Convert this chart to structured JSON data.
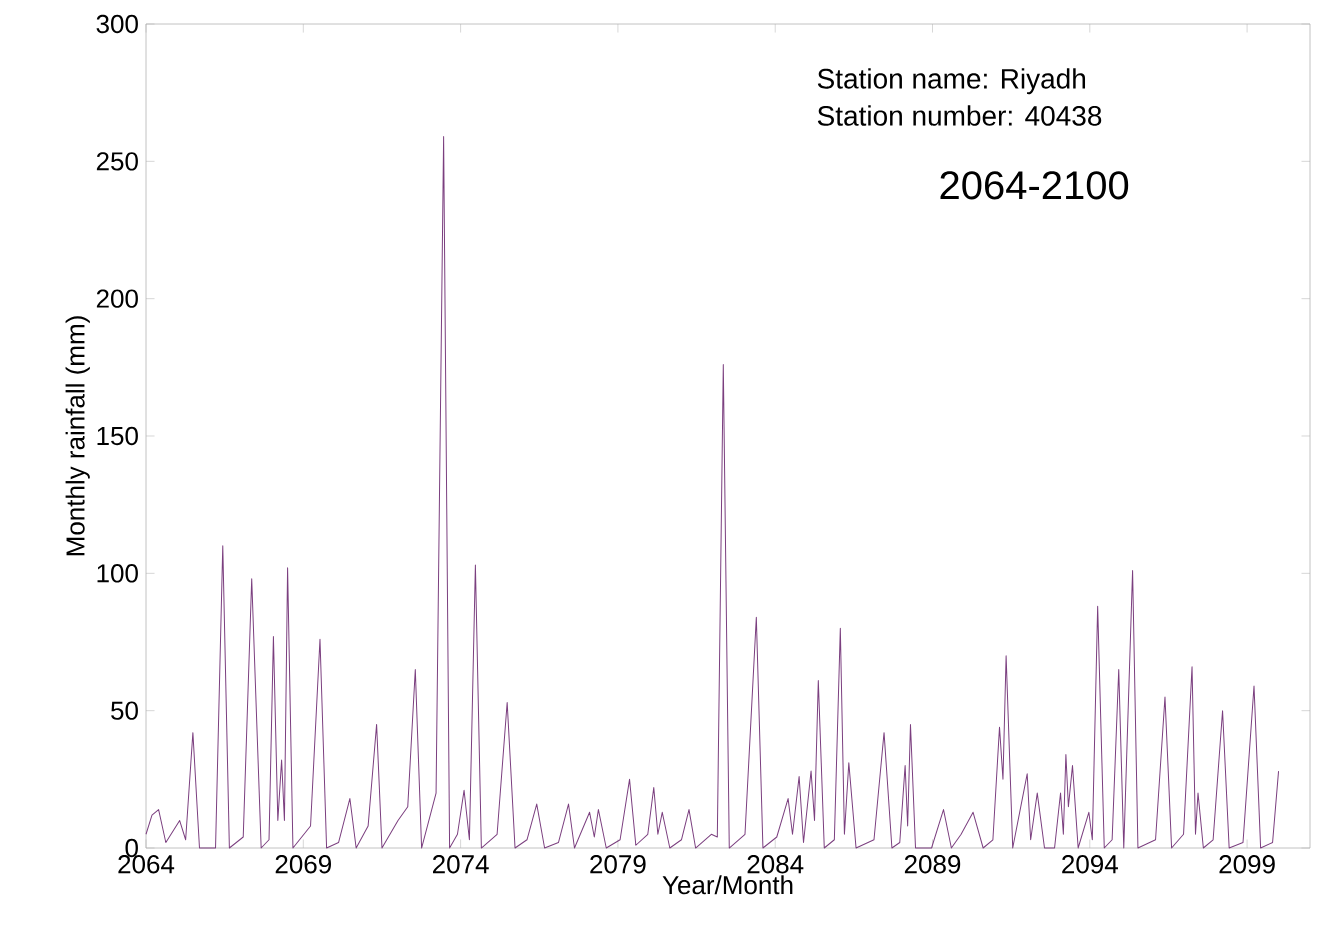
{
  "chart_data": {
    "type": "line",
    "xlabel": "Year/Month",
    "ylabel": "Monthly rainfall (mm)",
    "title": "2064-2100",
    "annotations": [
      "Station name: Riyadh",
      "Station number: 40438"
    ],
    "xlim": [
      2064,
      2101
    ],
    "xticks": [
      2064,
      2069,
      2074,
      2079,
      2084,
      2089,
      2094,
      2099
    ],
    "ylim": [
      0,
      300
    ],
    "yticks": [
      0,
      50,
      100,
      150,
      200,
      250,
      300
    ],
    "series": [
      {
        "color": "#7b3f7f",
        "x": [
          2064.0,
          2064.19,
          2064.4,
          2064.63,
          2065.07,
          2065.26,
          2065.49,
          2065.7,
          2066.21,
          2066.44,
          2066.65,
          2067.09,
          2067.36,
          2067.66,
          2067.91,
          2068.05,
          2068.19,
          2068.31,
          2068.4,
          2068.5,
          2068.67,
          2069.23,
          2069.53,
          2069.74,
          2070.12,
          2070.48,
          2070.68,
          2071.06,
          2071.33,
          2071.5,
          2072.01,
          2072.32,
          2072.56,
          2072.76,
          2073.22,
          2073.46,
          2073.65,
          2073.9,
          2074.11,
          2074.28,
          2074.47,
          2074.66,
          2075.16,
          2075.48,
          2075.73,
          2076.11,
          2076.42,
          2076.67,
          2077.11,
          2077.43,
          2077.62,
          2078.1,
          2078.25,
          2078.38,
          2078.63,
          2079.07,
          2079.37,
          2079.57,
          2079.95,
          2080.14,
          2080.27,
          2080.41,
          2080.65,
          2081.02,
          2081.26,
          2081.47,
          2081.97,
          2082.16,
          2082.35,
          2082.54,
          2083.04,
          2083.4,
          2083.61,
          2084.05,
          2084.41,
          2084.55,
          2084.76,
          2084.9,
          2085.14,
          2085.25,
          2085.37,
          2085.56,
          2085.88,
          2086.07,
          2086.2,
          2086.34,
          2086.57,
          2087.14,
          2087.46,
          2087.71,
          2087.96,
          2088.13,
          2088.21,
          2088.3,
          2088.46,
          2088.97,
          2089.35,
          2089.6,
          2089.91,
          2090.29,
          2090.61,
          2090.92,
          2091.13,
          2091.24,
          2091.34,
          2091.55,
          2092.01,
          2092.12,
          2092.33,
          2092.56,
          2092.88,
          2093.07,
          2093.16,
          2093.24,
          2093.32,
          2093.45,
          2093.63,
          2093.97,
          2094.08,
          2094.25,
          2094.46,
          2094.71,
          2094.92,
          2095.08,
          2095.36,
          2095.53,
          2096.09,
          2096.39,
          2096.6,
          2096.98,
          2097.25,
          2097.36,
          2097.44,
          2097.61,
          2097.92,
          2098.22,
          2098.43,
          2098.87,
          2099.22,
          2099.43,
          2099.81,
          2100.0
        ],
        "values": [
          5,
          12,
          14,
          2,
          10,
          3,
          42,
          0,
          0,
          110,
          0,
          4,
          98,
          0,
          3,
          77,
          10,
          32,
          10,
          102,
          0,
          8,
          76,
          0,
          2,
          18,
          0,
          8,
          45,
          0,
          10,
          15,
          65,
          0,
          20,
          259,
          0,
          5,
          21,
          3,
          103,
          0,
          5,
          53,
          0,
          3,
          16,
          0,
          2,
          16,
          0,
          13,
          4,
          14,
          0,
          3,
          25,
          1,
          5,
          22,
          5,
          13,
          0,
          3,
          14,
          0,
          5,
          4,
          176,
          0,
          5,
          84,
          0,
          4,
          18,
          5,
          26,
          2,
          28,
          10,
          61,
          0,
          3,
          80,
          5,
          31,
          0,
          3,
          42,
          0,
          2,
          30,
          8,
          45,
          0,
          0,
          14,
          0,
          5,
          13,
          0,
          3,
          44,
          25,
          70,
          0,
          27,
          3,
          20,
          0,
          0,
          20,
          5,
          34,
          15,
          30,
          0,
          13,
          3,
          88,
          0,
          3,
          65,
          0,
          101,
          0,
          3,
          55,
          0,
          5,
          66,
          5,
          20,
          0,
          3,
          50,
          0,
          2,
          59,
          0,
          2,
          28
        ]
      }
    ]
  }
}
